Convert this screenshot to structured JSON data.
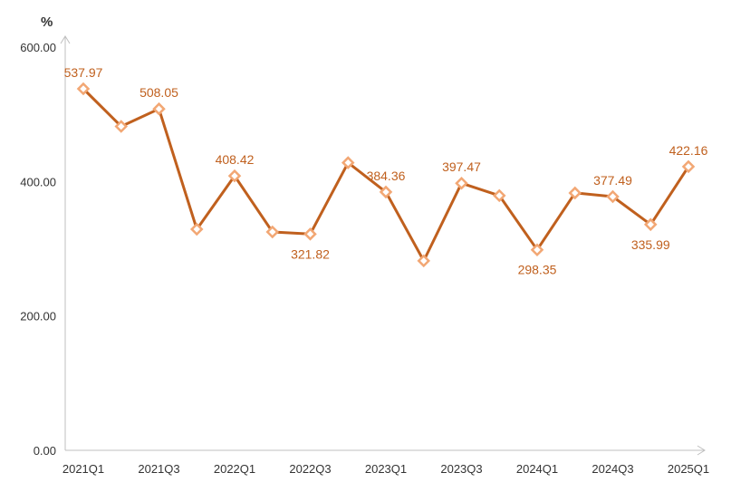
{
  "colors": {
    "series": "#C0601E",
    "marker_stroke": "#F2A774",
    "marker_fill": "#FFFFFF",
    "label": "#C0601E",
    "axis": "#BFBFBF",
    "text": "#333333"
  },
  "chart_data": {
    "type": "line",
    "title": "",
    "xlabel": "",
    "ylabel": "%",
    "ylim": [
      0,
      600
    ],
    "yticks": [
      "0.00",
      "200.00",
      "400.00",
      "600.00"
    ],
    "grid": false,
    "legend": "none",
    "categories": [
      "2021Q1",
      "2021Q2",
      "2021Q3",
      "2021Q4",
      "2022Q1",
      "2022Q2",
      "2022Q3",
      "2022Q4",
      "2023Q1",
      "2023Q2",
      "2023Q3",
      "2023Q4",
      "2024Q1",
      "2024Q2",
      "2024Q3",
      "2024Q4",
      "2025Q1"
    ],
    "x_tick_labels": [
      "2021Q1",
      "2021Q3",
      "2022Q1",
      "2022Q3",
      "2023Q1",
      "2023Q3",
      "2024Q1",
      "2024Q3",
      "2025Q1"
    ],
    "series": [
      {
        "values": [
          537.97,
          482,
          508.05,
          329,
          408.42,
          325,
          321.82,
          428,
          384.36,
          282,
          397.47,
          379,
          298.35,
          383,
          377.49,
          335.99,
          422.16
        ]
      }
    ],
    "data_labels": [
      {
        "category": "2021Q1",
        "text": "537.97",
        "position": "above"
      },
      {
        "category": "2021Q3",
        "text": "508.05",
        "position": "above"
      },
      {
        "category": "2022Q1",
        "text": "408.42",
        "position": "above"
      },
      {
        "category": "2022Q3",
        "text": "321.82",
        "position": "below"
      },
      {
        "category": "2023Q1",
        "text": "384.36",
        "position": "above"
      },
      {
        "category": "2023Q3",
        "text": "397.47",
        "position": "above"
      },
      {
        "category": "2024Q1",
        "text": "298.35",
        "position": "below"
      },
      {
        "category": "2024Q3",
        "text": "377.49",
        "position": "above"
      },
      {
        "category": "2024Q4",
        "text": "335.99",
        "position": "below"
      },
      {
        "category": "2025Q1",
        "text": "422.16",
        "position": "above"
      }
    ]
  }
}
